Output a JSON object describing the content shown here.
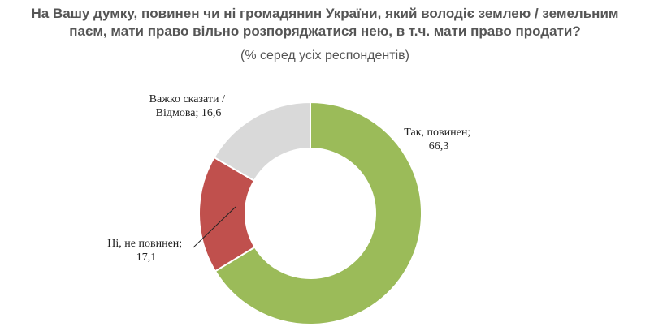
{
  "chart_data": {
    "type": "pie",
    "donut": true,
    "title_line1": "На Вашу думку, повинен чи ні громадянин України, який володіє землею / земельним",
    "title_line2": "паєм, мати право вільно розпоряджатися нею, в т.ч. мати право продати?",
    "subtitle": "(% серед усіх респондентів)",
    "unit": "%",
    "slices": [
      {
        "label_line1": "Так, повинен;",
        "label_line2": "66,3",
        "value": 66.3,
        "color": "#9bbb59"
      },
      {
        "label_line1": "Ні, не повинен;",
        "label_line2": "17,1",
        "value": 17.1,
        "color": "#c0504d"
      },
      {
        "label_line1": "Важко сказати /",
        "label_line2": "Відмова; 16,6",
        "value": 16.6,
        "color": "#d9d9d9"
      }
    ]
  }
}
